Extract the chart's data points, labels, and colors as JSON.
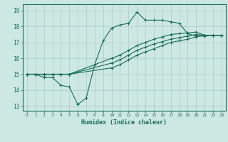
{
  "xlabel": "Humidex (Indice chaleur)",
  "ylabel": "",
  "bg_color": "#cde8e3",
  "grid_color": "#aecfca",
  "line_color": "#1a6b5a",
  "xlim": [
    -0.5,
    23.5
  ],
  "ylim": [
    12.7,
    19.4
  ],
  "xticks": [
    0,
    1,
    2,
    3,
    4,
    5,
    6,
    7,
    8,
    9,
    10,
    11,
    12,
    13,
    14,
    15,
    16,
    17,
    18,
    19,
    20,
    21,
    22,
    23
  ],
  "yticks": [
    13,
    14,
    15,
    16,
    17,
    18,
    19
  ],
  "series": [
    {
      "x": [
        0,
        1,
        2,
        3,
        4,
        5,
        6,
        7,
        8,
        9,
        10,
        11,
        12,
        13,
        14,
        15,
        16,
        17,
        18,
        19,
        20,
        21,
        22,
        23
      ],
      "y": [
        15.0,
        15.0,
        14.8,
        14.8,
        14.3,
        14.2,
        13.1,
        13.5,
        15.6,
        17.1,
        17.9,
        18.1,
        18.2,
        18.9,
        18.4,
        18.4,
        18.4,
        18.3,
        18.2,
        17.55,
        17.4,
        17.4,
        17.45,
        17.45
      ]
    },
    {
      "x": [
        0,
        1,
        2,
        3,
        4,
        5,
        10,
        11,
        12,
        13,
        14,
        15,
        16,
        17,
        18,
        19,
        20,
        21,
        22,
        23
      ],
      "y": [
        15.0,
        15.0,
        15.0,
        15.0,
        15.0,
        15.0,
        16.0,
        16.2,
        16.5,
        16.8,
        17.0,
        17.2,
        17.35,
        17.5,
        17.55,
        17.6,
        17.65,
        17.45,
        17.45,
        17.45
      ]
    },
    {
      "x": [
        0,
        1,
        2,
        3,
        4,
        5,
        10,
        11,
        12,
        13,
        14,
        15,
        16,
        17,
        18,
        19,
        20,
        21,
        22,
        23
      ],
      "y": [
        15.0,
        15.0,
        15.0,
        15.0,
        15.0,
        15.0,
        15.7,
        15.9,
        16.2,
        16.5,
        16.7,
        16.9,
        17.05,
        17.2,
        17.3,
        17.4,
        17.5,
        17.45,
        17.45,
        17.45
      ]
    },
    {
      "x": [
        0,
        1,
        2,
        3,
        4,
        5,
        10,
        11,
        12,
        13,
        14,
        15,
        16,
        17,
        18,
        19,
        20,
        21,
        22,
        23
      ],
      "y": [
        15.0,
        15.0,
        15.0,
        15.0,
        15.0,
        15.0,
        15.4,
        15.6,
        15.9,
        16.2,
        16.4,
        16.6,
        16.8,
        17.0,
        17.1,
        17.2,
        17.35,
        17.45,
        17.45,
        17.45
      ]
    }
  ]
}
